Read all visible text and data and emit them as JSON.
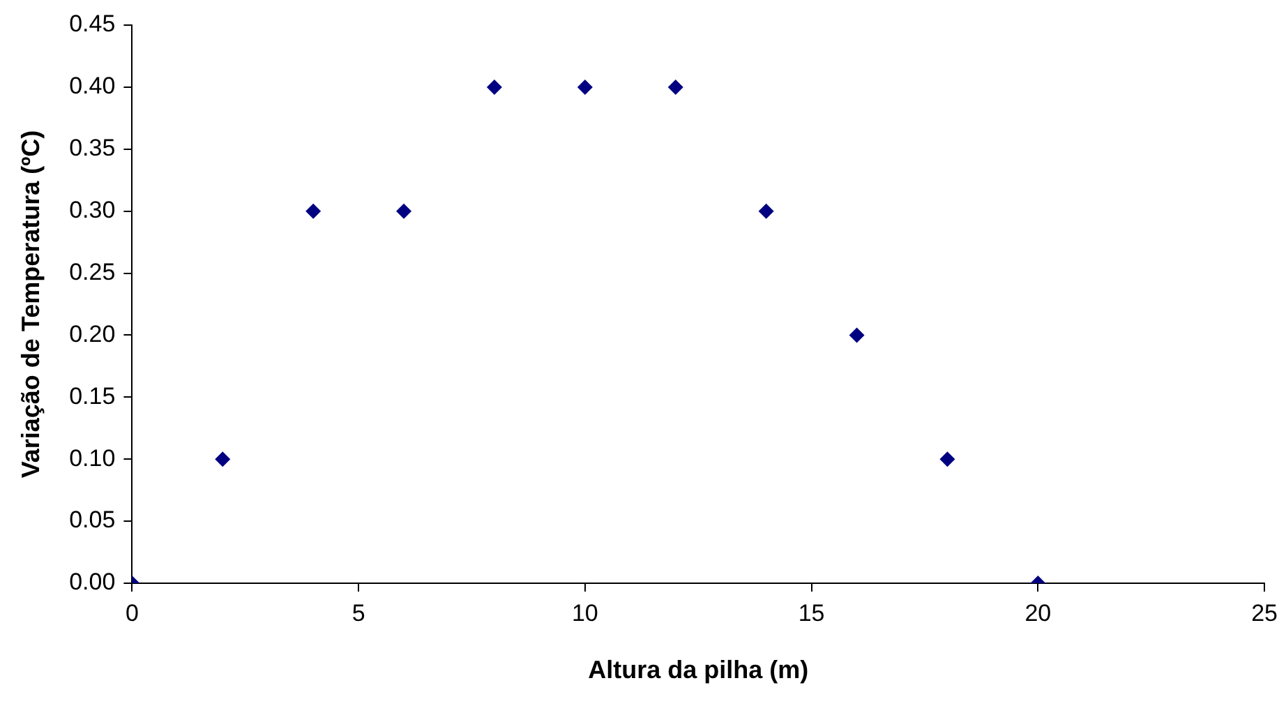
{
  "chart_data": {
    "type": "scatter",
    "xlabel": "Altura da pilha (m)",
    "ylabel": "Variação de Temperatura (ºC)",
    "x": [
      0,
      2,
      4,
      6,
      8,
      10,
      12,
      14,
      16,
      18,
      20
    ],
    "series": [
      {
        "color": "#000080",
        "values": [
          0,
          0.1,
          0.3,
          0.3,
          0.4,
          0.4,
          0.4,
          0.3,
          0.2,
          0.1,
          0
        ]
      }
    ],
    "xlim": [
      0,
      25
    ],
    "xticks": [
      0,
      5,
      10,
      15,
      20,
      25
    ],
    "ylim": [
      0,
      0.45
    ],
    "yticks": [
      {
        "value": 0,
        "label": "0.00"
      },
      {
        "value": 0.05,
        "label": "0.05"
      },
      {
        "value": 0.1,
        "label": "0.10"
      },
      {
        "value": 0.15,
        "label": "0.15"
      },
      {
        "value": 0.2,
        "label": "0.20"
      },
      {
        "value": 0.25,
        "label": "0.25"
      },
      {
        "value": 0.3,
        "label": "0.30"
      },
      {
        "value": 0.35,
        "label": "0.35"
      },
      {
        "value": 0.4,
        "label": "0.40"
      },
      {
        "value": 0.45,
        "label": "0.45"
      }
    ],
    "grid": false,
    "legend": false,
    "marker": "diamond"
  }
}
